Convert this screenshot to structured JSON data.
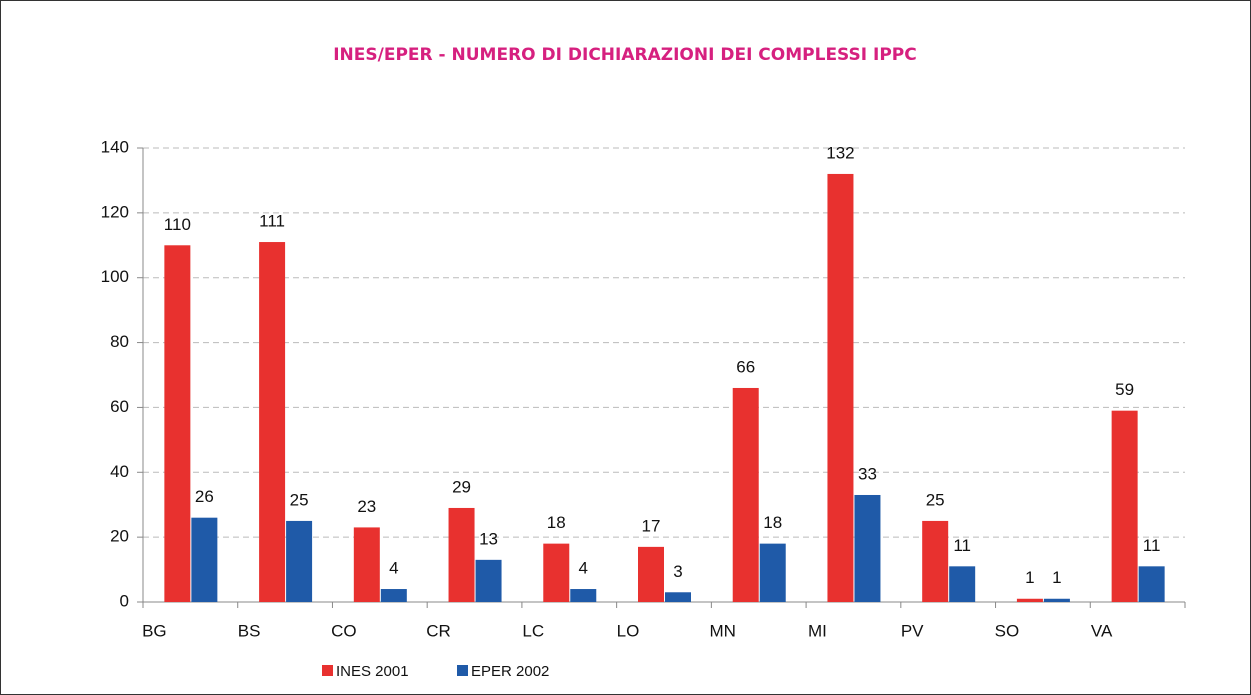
{
  "chart_data": {
    "type": "bar",
    "title": "INES/EPER - NUMERO DI DICHIARAZIONI DEI COMPLESSI IPPC",
    "categories": [
      "BG",
      "BS",
      "CO",
      "CR",
      "LC",
      "LO",
      "MN",
      "MI",
      "PV",
      "SO",
      "VA"
    ],
    "series": [
      {
        "name": "INES 2001",
        "color": "#e8312f",
        "values": [
          110,
          111,
          23,
          29,
          18,
          17,
          66,
          132,
          25,
          1,
          59
        ]
      },
      {
        "name": "EPER 2002",
        "color": "#1f5aa8",
        "values": [
          26,
          25,
          4,
          13,
          4,
          3,
          18,
          33,
          11,
          1,
          11
        ]
      }
    ],
    "ylim": [
      0,
      140
    ],
    "yticks": [
      0,
      20,
      40,
      60,
      80,
      100,
      120,
      140
    ],
    "grid": true,
    "legend": "bottom"
  }
}
